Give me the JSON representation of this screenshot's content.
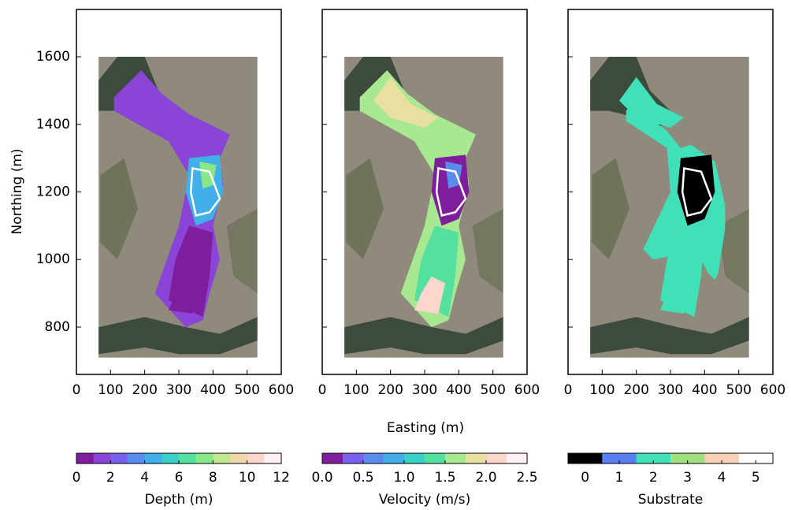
{
  "chart_data": [
    {
      "type": "map",
      "xlim": [
        0,
        600
      ],
      "ylim": [
        660,
        1740
      ],
      "xticks": [
        0,
        100,
        200,
        300,
        400,
        500,
        600
      ],
      "yticks": [
        800,
        1000,
        1200,
        1400,
        1600
      ],
      "colorbar": {
        "label": "Depth (m)",
        "lim": [
          0,
          12
        ],
        "ticks": [
          0,
          2,
          4,
          6,
          8,
          10,
          12
        ],
        "colors": [
          "#7e1e9c",
          "#8a44d8",
          "#7a60ee",
          "#5a8cf0",
          "#41b0e8",
          "#3ccfc8",
          "#55e0a0",
          "#88e888",
          "#c0e890",
          "#f0d8a8",
          "#fcd6cc",
          "#fff0f4"
        ]
      }
    },
    {
      "type": "map",
      "xlim": [
        0,
        600
      ],
      "ylim": [
        660,
        1740
      ],
      "xticks": [
        0,
        100,
        200,
        300,
        400,
        500,
        600
      ],
      "yticks": [
        800,
        1000,
        1200,
        1400,
        1600
      ],
      "colorbar": {
        "label": "Velocity (m/s)",
        "lim": [
          0,
          2.5
        ],
        "ticks": [
          {
            "value": 0,
            "label": "0.0"
          },
          0.5,
          {
            "value": 1,
            "label": "1.0"
          },
          1.5,
          {
            "value": 2,
            "label": "2.0"
          },
          2.5
        ],
        "colors": [
          "#7e1e9c",
          "#7a60ee",
          "#5a8cf0",
          "#41b0e8",
          "#3ccfc8",
          "#55e0a0",
          "#a8e890",
          "#e8e0a0",
          "#fcd6cc",
          "#fff0f4"
        ]
      }
    },
    {
      "type": "map",
      "xlim": [
        0,
        600
      ],
      "ylim": [
        660,
        1740
      ],
      "xticks": [
        0,
        100,
        200,
        300,
        400,
        500,
        600
      ],
      "yticks": [
        800,
        1000,
        1200,
        1400,
        1600
      ],
      "colorbar": {
        "label": "Substrate",
        "lim": [
          -0.5,
          5.5
        ],
        "ticks": [
          0,
          1,
          2,
          3,
          4,
          5
        ],
        "colors": [
          "#000000",
          "#5a7ff0",
          "#40e0b8",
          "#a0e080",
          "#f8d0b8",
          "#ffffff"
        ]
      }
    }
  ],
  "x_label": "Easting (m)",
  "y_label": "Northing (m)"
}
